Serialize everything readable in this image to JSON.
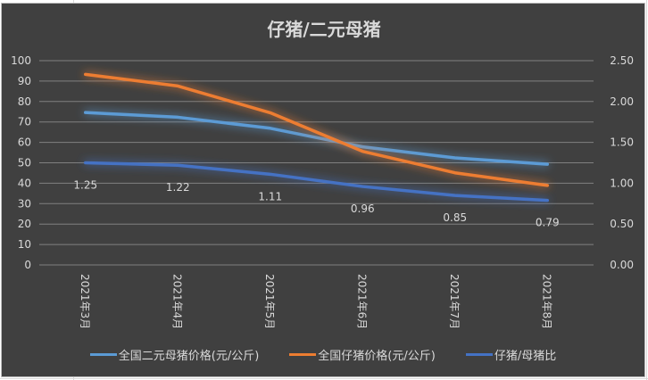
{
  "chart_data": {
    "type": "line",
    "title": "仔猪/二元母猪",
    "categories": [
      "2021年3月",
      "2021年4月",
      "2021年5月",
      "2021年6月",
      "2021年7月",
      "2021年8月"
    ],
    "y_left": {
      "ylim": [
        0,
        100
      ],
      "ticks": [
        "0",
        "10",
        "20",
        "30",
        "40",
        "50",
        "60",
        "70",
        "80",
        "90",
        "100"
      ]
    },
    "y_right": {
      "ylim": [
        0,
        2.5
      ],
      "ticks": [
        "0.00",
        "0.50",
        "1.00",
        "1.50",
        "2.00",
        "2.50"
      ]
    },
    "grid": true,
    "legend_position": "bottom",
    "series": [
      {
        "name": "全国二元母猪价格(元/公斤)",
        "axis": "left",
        "color": "#5b9bd5",
        "values": [
          74.6,
          72.3,
          66.9,
          57.8,
          52.4,
          49.3
        ]
      },
      {
        "name": "全国仔猪价格(元/公斤)",
        "axis": "left",
        "color": "#ed7d31",
        "values": [
          93.3,
          87.6,
          74.5,
          55.6,
          45.1,
          38.9
        ]
      },
      {
        "name": "仔猪/母猪比",
        "axis": "right",
        "color": "#4472c4",
        "values": [
          1.25,
          1.22,
          1.11,
          0.96,
          0.85,
          0.79
        ],
        "data_labels": [
          "1.25",
          "1.22",
          "1.11",
          "0.96",
          "0.85",
          "0.79"
        ]
      }
    ]
  }
}
